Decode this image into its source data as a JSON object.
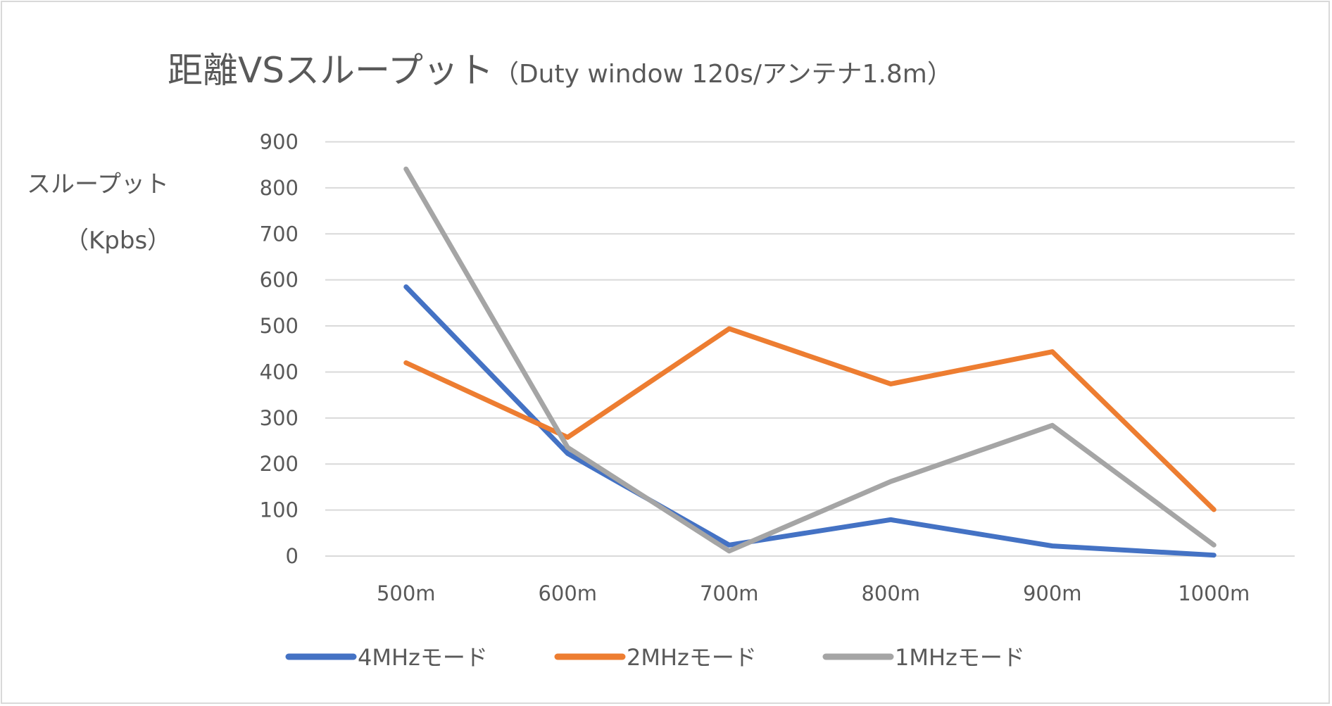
{
  "chart_data": {
    "type": "line",
    "title_main": "距離VSスループット",
    "title_sub": "（Duty window 120s/アンテナ1.8m）",
    "ylabel_line1": "スループット",
    "ylabel_line2": "（Kpbs）",
    "xlabel": "",
    "categories": [
      "500m",
      "600m",
      "700m",
      "800m",
      "900m",
      "1000m"
    ],
    "ylim": [
      0,
      900
    ],
    "yticks": [
      0,
      100,
      200,
      300,
      400,
      500,
      600,
      700,
      800,
      900
    ],
    "grid": true,
    "legend_position": "bottom",
    "series": [
      {
        "name": "4MHzモード",
        "color": "#4472c4",
        "values": [
          585,
          223,
          24,
          79,
          22,
          2
        ]
      },
      {
        "name": "2MHzモード",
        "color": "#ed7d31",
        "values": [
          420,
          258,
          494,
          374,
          444,
          101
        ]
      },
      {
        "name": "1MHzモード",
        "color": "#a5a5a5",
        "values": [
          841,
          236,
          11,
          162,
          284,
          24
        ]
      }
    ]
  }
}
